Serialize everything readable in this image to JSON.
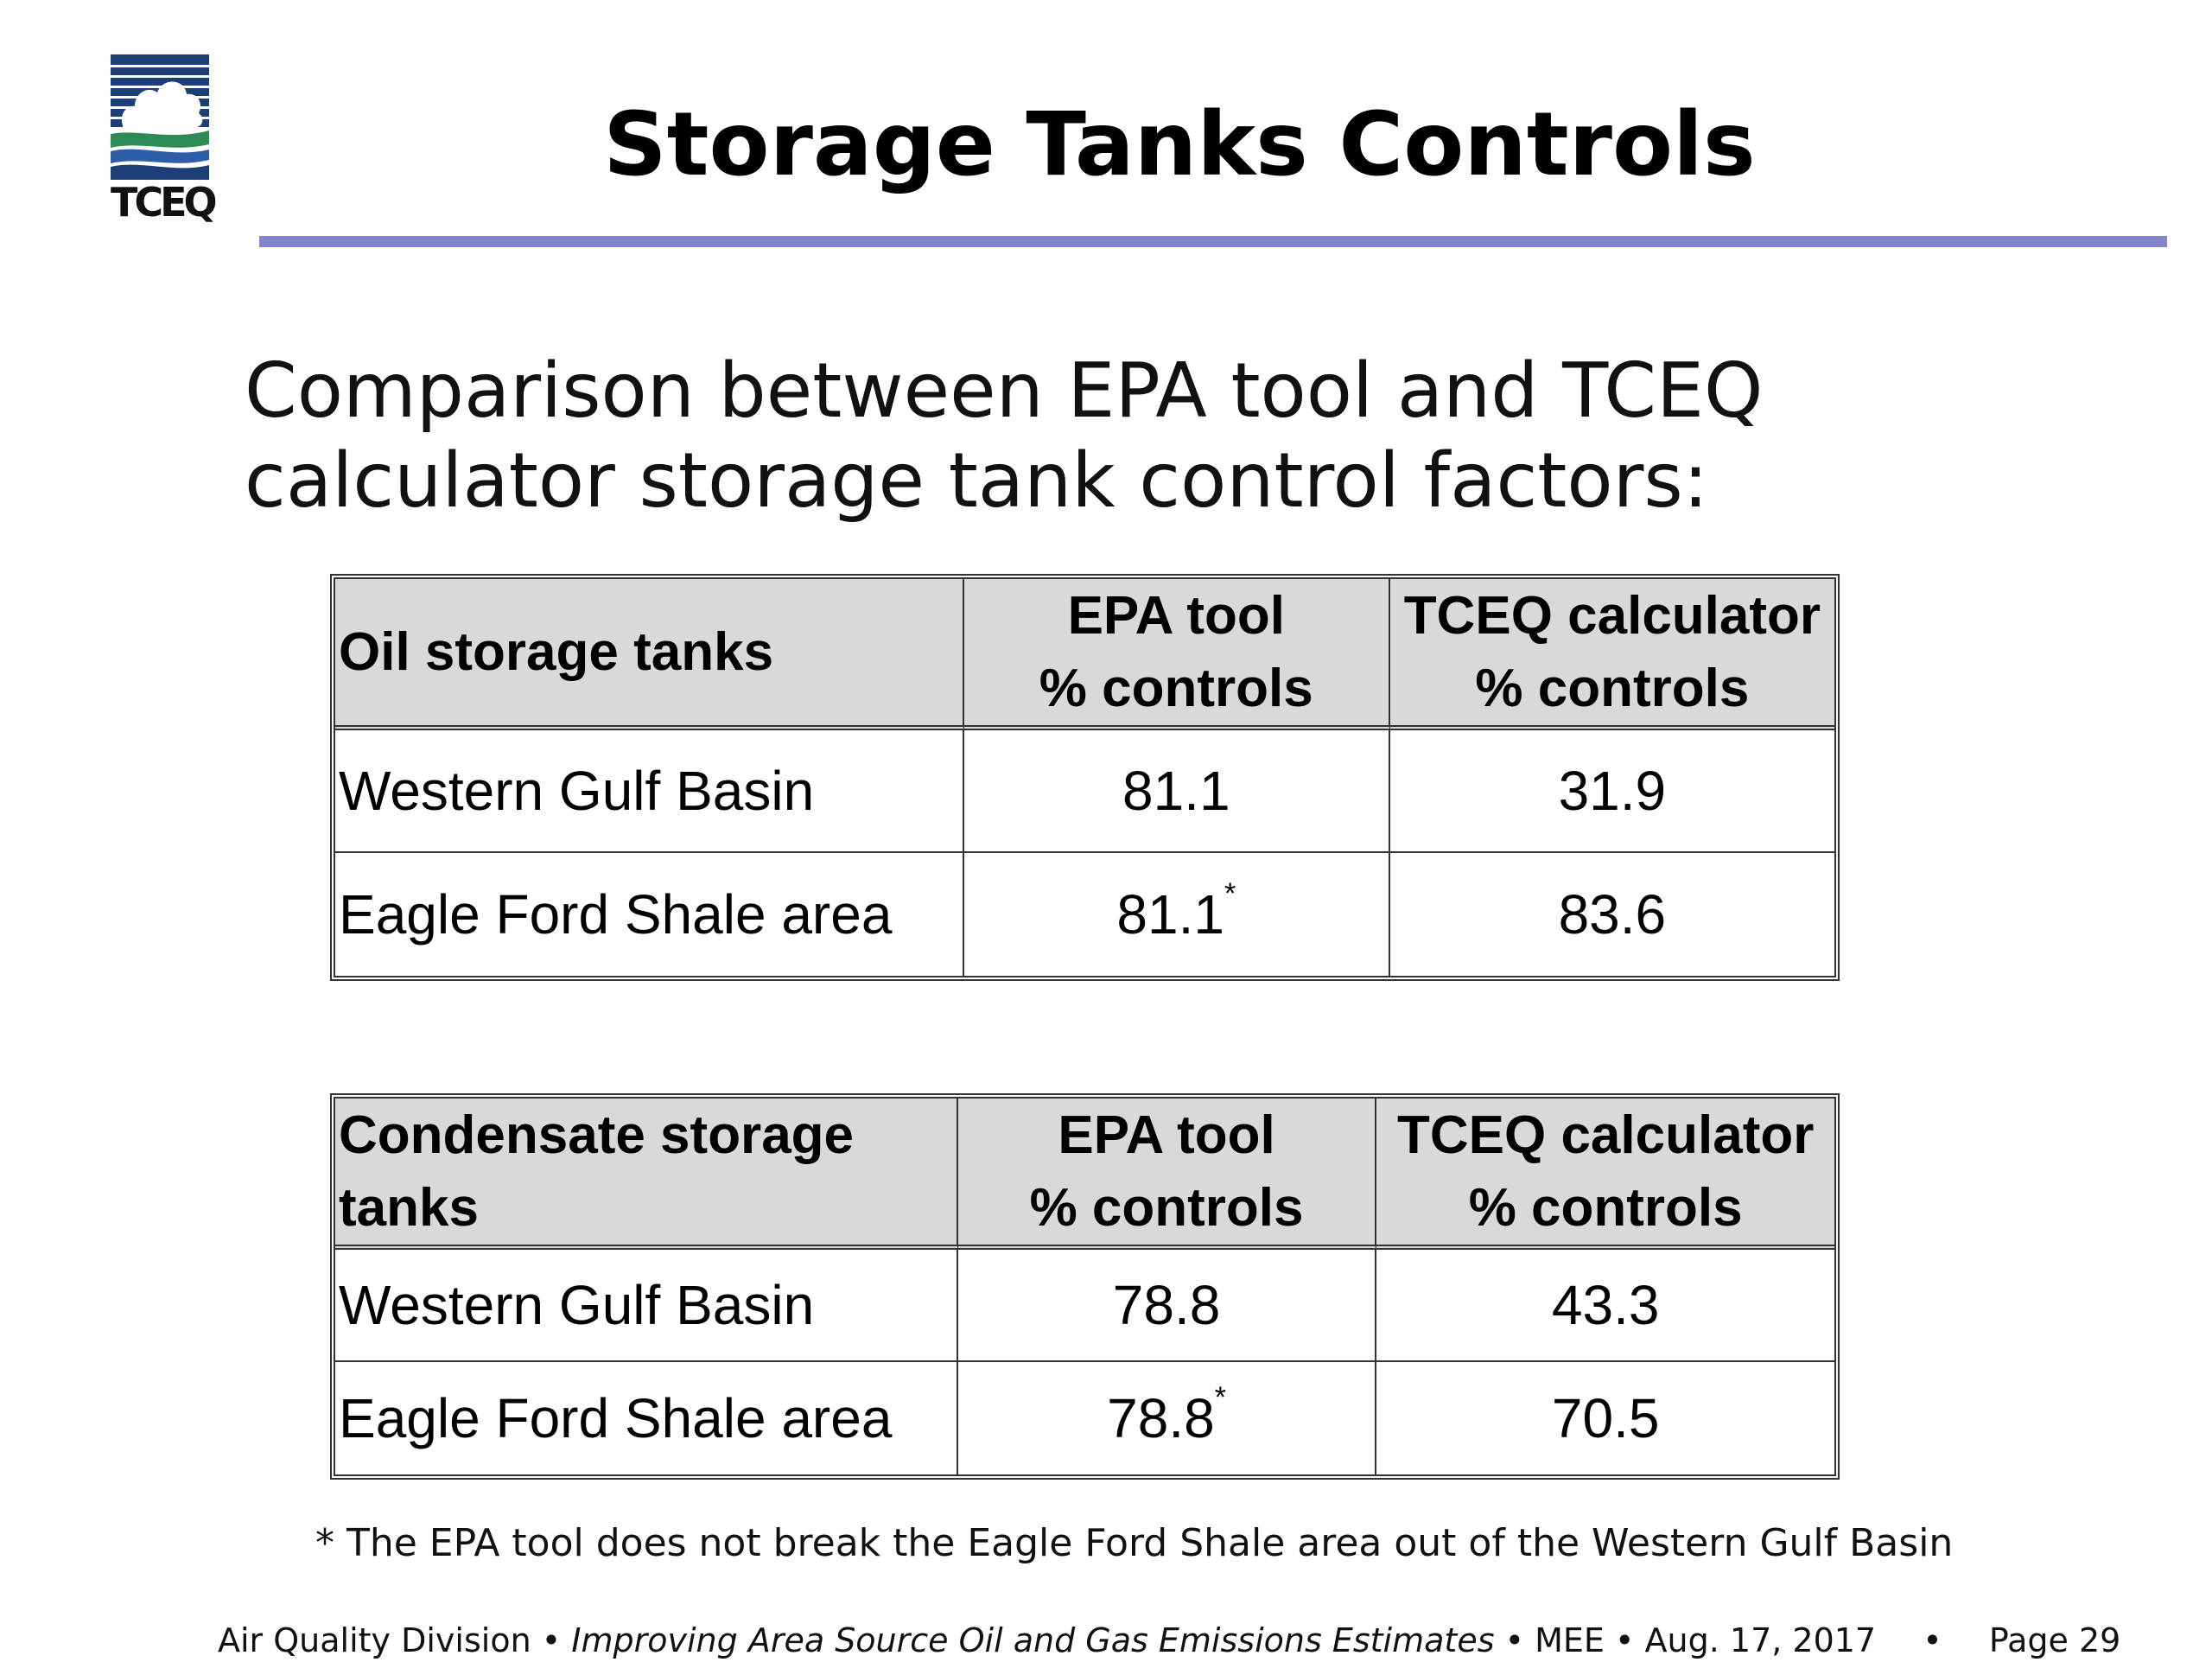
{
  "logo": {
    "text": "TCEQ",
    "colors": {
      "navy": "#1c3f7a",
      "green": "#2e8b57",
      "sky": "#2f5ea8"
    }
  },
  "title": "Storage Tanks Controls",
  "rule_color": "#8585cc",
  "intro": {
    "line1": "Comparison between EPA tool and TCEQ",
    "line2": "calculator storage tank control factors:"
  },
  "oil_table": {
    "headers": [
      {
        "lines": [
          "Oil storage tanks"
        ]
      },
      {
        "lines": [
          "EPA tool",
          "% controls"
        ]
      },
      {
        "lines": [
          "TCEQ calculator",
          "% controls"
        ]
      }
    ],
    "rows": [
      {
        "area": "Western Gulf Basin",
        "epa": "81.1",
        "epa_mark": "",
        "tceq": "31.9"
      },
      {
        "area": "Eagle Ford Shale area",
        "epa": "81.1",
        "epa_mark": "*",
        "tceq": "83.6"
      }
    ]
  },
  "condensate_table": {
    "headers": [
      {
        "lines": [
          "Condensate storage",
          "tanks"
        ]
      },
      {
        "lines": [
          "EPA tool",
          "% controls"
        ]
      },
      {
        "lines": [
          "TCEQ calculator",
          "% controls"
        ]
      }
    ],
    "rows": [
      {
        "area": "Western Gulf Basin",
        "epa": "78.8",
        "epa_mark": "",
        "tceq": "43.3"
      },
      {
        "area": "Eagle Ford Shale area",
        "epa": "78.8",
        "epa_mark": "*",
        "tceq": "70.5"
      }
    ]
  },
  "footnote": "* The EPA tool does not break the Eagle Ford Shale area out of the Western Gulf Basin",
  "footer": {
    "division": "Air Quality Division",
    "sep": "•",
    "presentation": "Improving Area Source Oil and Gas Emissions Estimates",
    "event": "MEE",
    "date": "Aug. 17, 2017",
    "page": "Page 29"
  }
}
